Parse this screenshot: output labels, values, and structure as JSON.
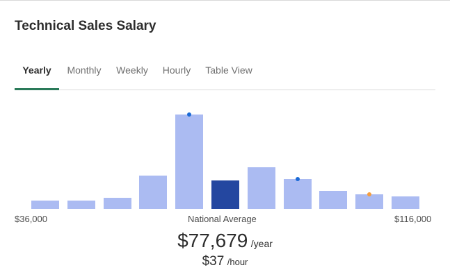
{
  "title": "Technical Sales Salary",
  "tabs": [
    {
      "label": "Yearly",
      "active": true
    },
    {
      "label": "Monthly",
      "active": false
    },
    {
      "label": "Weekly",
      "active": false
    },
    {
      "label": "Hourly",
      "active": false
    },
    {
      "label": "Table View",
      "active": false
    }
  ],
  "colors": {
    "accent": "#2a7a59",
    "bar": "#abbbf2",
    "bar_highlight": "#2447a0",
    "marker_blue": "#1b6ad6",
    "marker_orange": "#f59d3f"
  },
  "axis": {
    "min_label": "$36,000",
    "mid_label": "National Average",
    "max_label": "$116,000"
  },
  "salary": {
    "yearly_amount": "$77,679",
    "yearly_unit": "/year",
    "hourly_amount": "$37",
    "hourly_unit": "/hour"
  },
  "chart_data": {
    "type": "bar",
    "title": "",
    "xlabel": "",
    "ylabel": "",
    "x_range": [
      36000,
      116000
    ],
    "relative_heights": [
      0.088,
      0.088,
      0.118,
      0.353,
      1.0,
      0.301,
      0.441,
      0.316,
      0.191,
      0.154,
      0.132
    ],
    "highlight_index": 5,
    "markers": [
      {
        "bar_index": 4,
        "color": "#1b6ad6"
      },
      {
        "bar_index": 7,
        "color": "#1b6ad6"
      },
      {
        "bar_index": 9,
        "color": "#f59d3f"
      }
    ]
  }
}
